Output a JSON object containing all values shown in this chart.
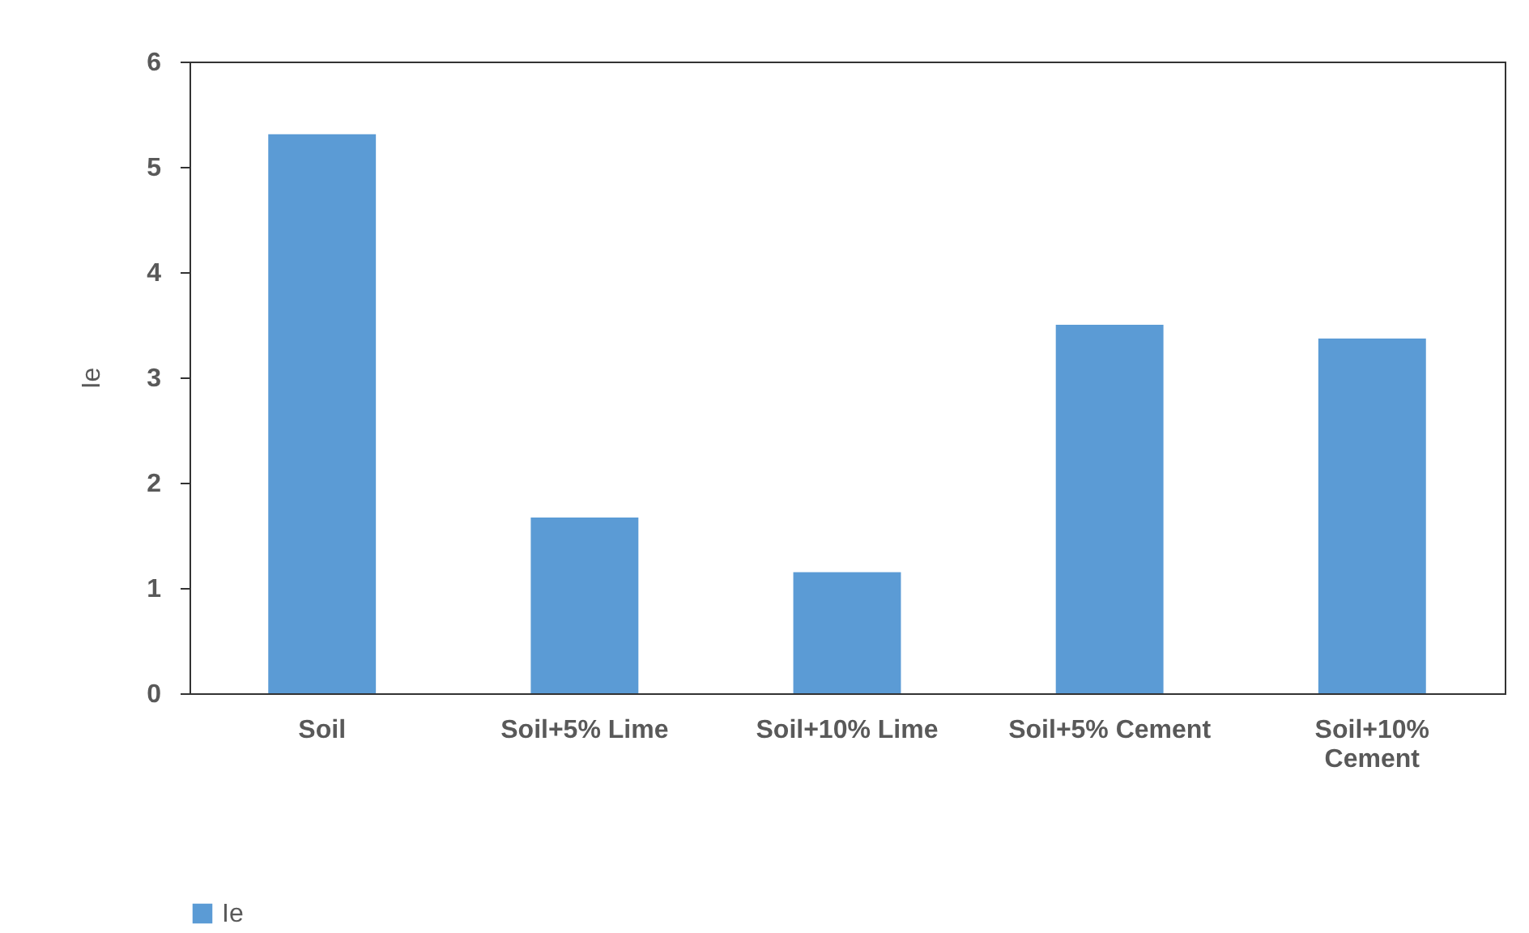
{
  "chart_data": {
    "type": "bar",
    "ylabel": "Ie",
    "categories": [
      "Soil",
      "Soil+5% Lime",
      "Soil+10% Lime",
      "Soil+5% Cement",
      "Soil+10% Cement"
    ],
    "series": [
      {
        "name": "Ie",
        "color": "#5b9bd5",
        "values": [
          5.31,
          1.67,
          1.15,
          3.5,
          3.37
        ]
      }
    ],
    "ylim": [
      0,
      6
    ],
    "yticks": [
      0,
      1,
      2,
      3,
      4,
      5,
      6
    ],
    "grid": false,
    "legend": "bottom"
  }
}
